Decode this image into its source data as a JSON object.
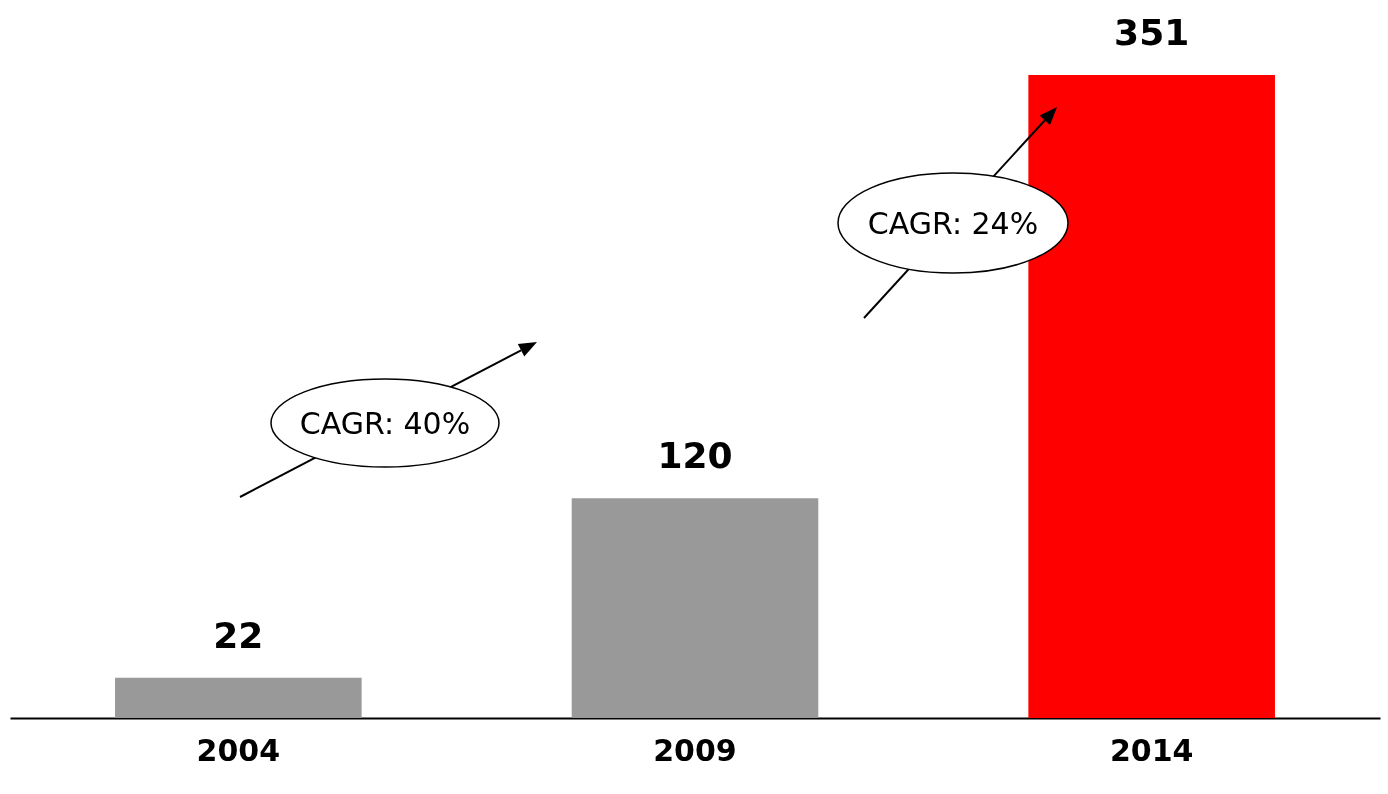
{
  "chart_data": {
    "type": "bar",
    "categories": [
      "2004",
      "2009",
      "2014"
    ],
    "values": [
      22,
      120,
      351
    ],
    "colors": [
      "#999999",
      "#999999",
      "#ff0000"
    ],
    "data_labels": true,
    "annotations": [
      "CAGR: 40%",
      "CAGR: 24%"
    ]
  }
}
